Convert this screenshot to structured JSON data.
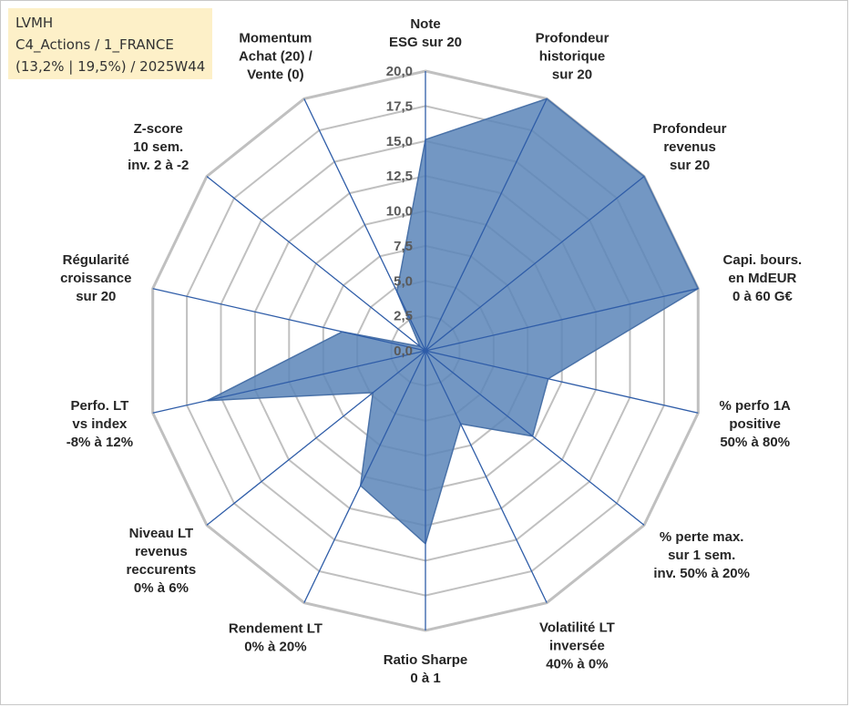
{
  "info_box": {
    "line1": "LVMH",
    "line2": "C4_Actions / 1_FRANCE",
    "line3": "(13,2% | 19,5%) / 2025W44"
  },
  "colors": {
    "fill": "#5b85b8",
    "stroke": "#4a72a8",
    "spoke": "#2f5da8",
    "grid": "#c0c0c0",
    "info_bg": "#fdf0c8"
  },
  "chart_data": {
    "type": "radar",
    "title": "",
    "r_range": [
      0,
      20
    ],
    "ticks": [
      "0,0",
      "2,5",
      "5,0",
      "7,5",
      "10,0",
      "12,5",
      "15,0",
      "17,5",
      "20,0"
    ],
    "grid": true,
    "categories": [
      [
        "Note",
        "ESG sur 20"
      ],
      [
        "Profondeur",
        "historique",
        "sur 20"
      ],
      [
        "Profondeur",
        "revenus",
        "sur 20"
      ],
      [
        "Capi. bours.",
        "en MdEUR",
        "0 à 60 G€"
      ],
      [
        "% perfo 1A",
        "positive",
        "50% à 80%"
      ],
      [
        "% perte max.",
        "sur 1 sem.",
        "inv. 50% à 20%"
      ],
      [
        "Volatilité LT",
        "inversée",
        "40% à 0%"
      ],
      [
        "Ratio Sharpe",
        "0 à 1"
      ],
      [
        "Rendement LT",
        "0% à 20%"
      ],
      [
        "Niveau LT",
        "revenus",
        "reccurents",
        "0% à 6%"
      ],
      [
        "Perfo. LT",
        "vs index",
        "-8% à 12%"
      ],
      [
        "Régularité",
        "croissance",
        "sur 20"
      ],
      [
        "Z-score",
        "10 sem.",
        "inv. 2 à -2"
      ],
      [
        "Momentum",
        "Achat (20) /",
        "Vente (0)"
      ]
    ],
    "values": [
      15.1,
      20.0,
      20.0,
      20.0,
      9.0,
      9.8,
      5.8,
      13.8,
      10.7,
      4.8,
      16.0,
      6.1,
      0.5,
      4.7
    ]
  }
}
